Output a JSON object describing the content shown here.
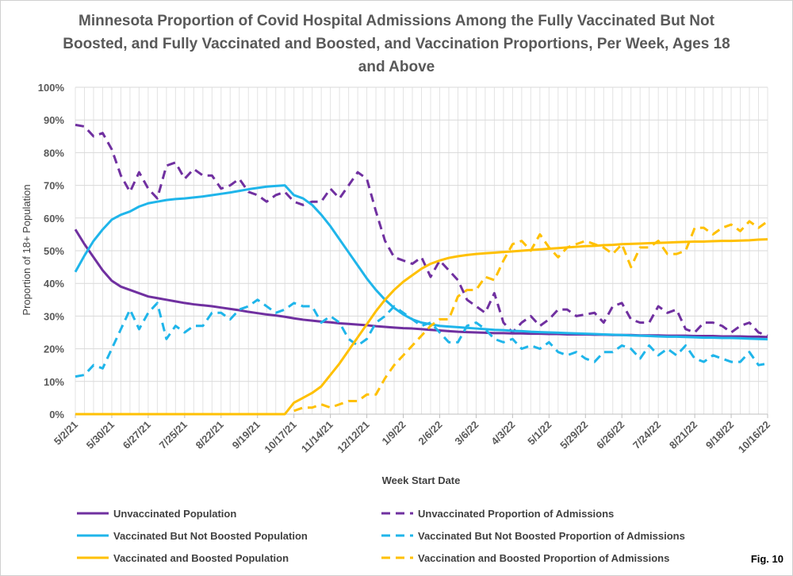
{
  "figure": {
    "title": "Minnesota Proportion of Covid Hospital Admissions Among the Fully Vaccinated But Not Boosted,  and Fully Vaccinated and Boosted, and Vaccination Proportions, Per Week, Ages 18 and Above",
    "fig_label": "Fig. 10"
  },
  "chart_data": {
    "type": "line",
    "title": "Minnesota Proportion of Covid Hospital Admissions Among the Fully Vaccinated But Not Boosted,  and Fully Vaccinated and Boosted, and Vaccination Proportions, Per Week, Ages 18 and Above",
    "xlabel": "Week Start Date",
    "ylabel": "Proportion of 18+ Population",
    "ylim": [
      0,
      100
    ],
    "yticks": [
      "0%",
      "10%",
      "20%",
      "30%",
      "40%",
      "50%",
      "60%",
      "70%",
      "80%",
      "90%",
      "100%"
    ],
    "xtick_labels": [
      "5/2/21",
      "5/30/21",
      "6/27/21",
      "7/25/21",
      "8/22/21",
      "9/19/21",
      "10/17/21",
      "11/14/21",
      "12/12/21",
      "1/9/22",
      "2/6/22",
      "3/6/22",
      "4/3/22",
      "5/1/22",
      "5/29/22",
      "6/26/22",
      "7/24/22",
      "8/21/22",
      "9/18/22",
      "10/16/22"
    ],
    "x_weeks": 77,
    "grid": true,
    "legend_position": "bottom",
    "series": [
      {
        "name": "Unvaccinated Population",
        "color": "#7030a0",
        "dash": false,
        "values": [
          56.5,
          52,
          48,
          44,
          40.8,
          39,
          38,
          37,
          36,
          35.5,
          35,
          34.5,
          34,
          33.6,
          33.3,
          33,
          32.6,
          32.2,
          31.8,
          31.3,
          30.9,
          30.5,
          30.2,
          29.8,
          29.3,
          28.9,
          28.6,
          28.3,
          28.1,
          27.8,
          27.6,
          27.4,
          27.2,
          26.9,
          26.7,
          26.5,
          26.3,
          26.2,
          26,
          25.8,
          25.6,
          25.4,
          25.2,
          25.1,
          25,
          24.9,
          24.8,
          24.8,
          24.7,
          24.7,
          24.6,
          24.6,
          24.5,
          24.5,
          24.4,
          24.4,
          24.4,
          24.3,
          24.3,
          24.2,
          24.2,
          24.2,
          24.1,
          24.1,
          24.1,
          24,
          24,
          24,
          23.9,
          23.9,
          23.9,
          23.8,
          23.8,
          23.8,
          23.7,
          23.7,
          23.6
        ]
      },
      {
        "name": "Unvaccinated Proportion of Admissions",
        "color": "#7030a0",
        "dash": true,
        "values": [
          88.5,
          88,
          85,
          86,
          81,
          73,
          68,
          74,
          69,
          66,
          76,
          77,
          72,
          75,
          73,
          73,
          69,
          70,
          72,
          68,
          67,
          65,
          67,
          68,
          65,
          64,
          65,
          65,
          69,
          66,
          70,
          74,
          72,
          62,
          53,
          48,
          47,
          46,
          48,
          42,
          47,
          44,
          41,
          35,
          33,
          31,
          37,
          28,
          25,
          28,
          30,
          27,
          29,
          32,
          32,
          30,
          30.5,
          31,
          28,
          33,
          34,
          29,
          28,
          28,
          33,
          31,
          32,
          26,
          25,
          28,
          28,
          27,
          25,
          27,
          28,
          25,
          24
        ]
      },
      {
        "name": "Vaccinated But Not Boosted Population",
        "color": "#1fb5ea",
        "dash": false,
        "values": [
          43.5,
          48.5,
          53,
          56.5,
          59.5,
          61,
          62,
          63.5,
          64.5,
          65,
          65.5,
          65.8,
          66,
          66.3,
          66.6,
          67,
          67.4,
          67.8,
          68.3,
          68.8,
          69.2,
          69.6,
          69.8,
          70,
          67,
          66,
          64,
          61,
          57.5,
          53.5,
          49.5,
          45.5,
          41.5,
          38,
          35,
          32.5,
          30.5,
          29,
          28,
          27.5,
          27,
          26.8,
          26.6,
          26.4,
          26.2,
          26,
          25.8,
          25.7,
          25.5,
          25.4,
          25.2,
          25.1,
          25,
          24.9,
          24.8,
          24.7,
          24.6,
          24.5,
          24.4,
          24.3,
          24.2,
          24.1,
          24,
          23.9,
          23.8,
          23.7,
          23.7,
          23.6,
          23.5,
          23.4,
          23.4,
          23.3,
          23.3,
          23.2,
          23.1,
          23,
          22.9
        ]
      },
      {
        "name": "Vaccinated But Not Boosted Proportion of Admissions",
        "color": "#1fb5ea",
        "dash": true,
        "values": [
          11.5,
          12,
          15,
          14,
          20,
          26,
          32,
          26,
          31,
          34,
          23,
          27,
          25,
          27,
          27,
          31,
          31,
          29,
          32,
          33,
          35,
          33,
          31,
          32,
          34,
          33,
          33,
          28,
          30,
          28,
          23,
          21,
          23,
          28,
          30,
          33,
          31,
          29,
          27,
          28,
          25,
          22,
          22,
          27,
          28,
          26,
          23,
          22,
          23,
          20,
          21,
          20,
          22,
          19,
          18,
          19,
          17,
          16,
          19,
          19,
          21,
          20,
          17,
          21,
          18,
          20,
          18,
          21,
          17,
          16,
          18,
          17,
          16,
          16,
          19,
          15,
          15.5
        ]
      },
      {
        "name": "Vaccinated and Boosted Population",
        "color": "#ffc000",
        "dash": false,
        "values": [
          0,
          0,
          0,
          0,
          0,
          0,
          0,
          0,
          0,
          0,
          0,
          0,
          0,
          0,
          0,
          0,
          0,
          0,
          0,
          0,
          0,
          0,
          0,
          0,
          3.5,
          5,
          6.5,
          8.5,
          12,
          15.5,
          19.5,
          23.5,
          27.5,
          31.5,
          35,
          38,
          40.5,
          42.5,
          44.5,
          46,
          47,
          47.8,
          48.3,
          48.7,
          49,
          49.2,
          49.4,
          49.6,
          49.8,
          50,
          50.2,
          50.4,
          50.6,
          50.8,
          51,
          51.2,
          51.4,
          51.5,
          51.7,
          51.8,
          52,
          52.1,
          52.2,
          52.3,
          52.4,
          52.5,
          52.6,
          52.7,
          52.8,
          52.8,
          52.9,
          53,
          53,
          53.1,
          53.2,
          53.4,
          53.5
        ]
      },
      {
        "name": "Vaccination and Boosted Proportion of Admissions",
        "color": "#ffc000",
        "dash": true,
        "values": [
          null,
          null,
          null,
          null,
          null,
          null,
          null,
          null,
          null,
          null,
          null,
          null,
          null,
          null,
          null,
          null,
          null,
          null,
          null,
          null,
          null,
          null,
          null,
          null,
          1,
          2,
          2,
          3,
          2,
          3,
          4,
          4,
          6,
          6,
          11,
          15,
          18,
          21,
          24,
          27,
          29,
          29,
          36,
          38,
          38,
          42,
          41,
          47,
          52,
          53,
          50,
          55,
          51,
          48,
          51,
          52,
          53,
          52,
          51,
          49,
          52,
          45,
          51,
          51,
          53,
          49,
          49,
          50,
          57,
          57,
          55,
          57,
          58,
          56,
          59,
          57,
          59
        ]
      }
    ]
  }
}
